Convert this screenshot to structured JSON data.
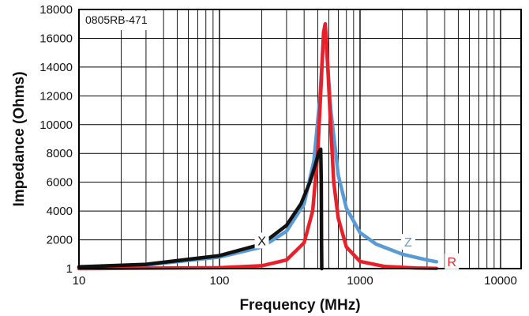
{
  "chart_data": {
    "type": "line",
    "part_label": "0805RB-471",
    "xlabel": "Frequency (MHz)",
    "ylabel": "Impedance (Ohms)",
    "x_scale": "log",
    "xlim": [
      10,
      14000
    ],
    "ylim": [
      1,
      18000
    ],
    "x_ticks": [
      10,
      100,
      1000,
      10000
    ],
    "y_ticks": [
      {
        "value": 1,
        "label": "1"
      },
      {
        "value": 2000,
        "label": "2000"
      },
      {
        "value": 4000,
        "label": "4000"
      },
      {
        "value": 6000,
        "label": "6000"
      },
      {
        "value": 8000,
        "label": "8000"
      },
      {
        "value": 10000,
        "label": "10000"
      },
      {
        "value": 12000,
        "label": "12000"
      },
      {
        "value": 14000,
        "label": "14000"
      },
      {
        "value": 16000,
        "label": "16000"
      },
      {
        "value": 18000,
        "label": "18000"
      }
    ],
    "grid": true,
    "series": [
      {
        "name": "Z",
        "color": "#5b9bd5",
        "label_at": [
          2200,
          1800
        ],
        "x": [
          10,
          30,
          100,
          200,
          300,
          400,
          470,
          520,
          545,
          560,
          580,
          620,
          700,
          800,
          1000,
          1300,
          2000,
          3000,
          3500
        ],
        "y": [
          100,
          250,
          800,
          1500,
          2600,
          4500,
          7500,
          12000,
          15500,
          16800,
          15000,
          11000,
          6500,
          4200,
          2500,
          1700,
          1000,
          600,
          480
        ]
      },
      {
        "name": "R",
        "color": "#e8202a",
        "label_at": [
          4500,
          450
        ],
        "x": [
          10,
          100,
          200,
          300,
          400,
          460,
          500,
          530,
          550,
          565,
          580,
          610,
          650,
          700,
          800,
          1000,
          1500,
          2500,
          3500
        ],
        "y": [
          0,
          60,
          200,
          600,
          1800,
          4000,
          8000,
          13000,
          16400,
          17000,
          15500,
          11000,
          6000,
          3500,
          1500,
          500,
          150,
          40,
          20
        ]
      },
      {
        "name": "X",
        "color": "#111111",
        "label_at": [
          200,
          1900
        ],
        "x": [
          10,
          30,
          100,
          200,
          300,
          380,
          440,
          480,
          510,
          525,
          530,
          532,
          534
        ],
        "y": [
          120,
          300,
          900,
          1700,
          3000,
          4500,
          6000,
          7200,
          8100,
          8300,
          6000,
          2000,
          0
        ]
      }
    ]
  }
}
